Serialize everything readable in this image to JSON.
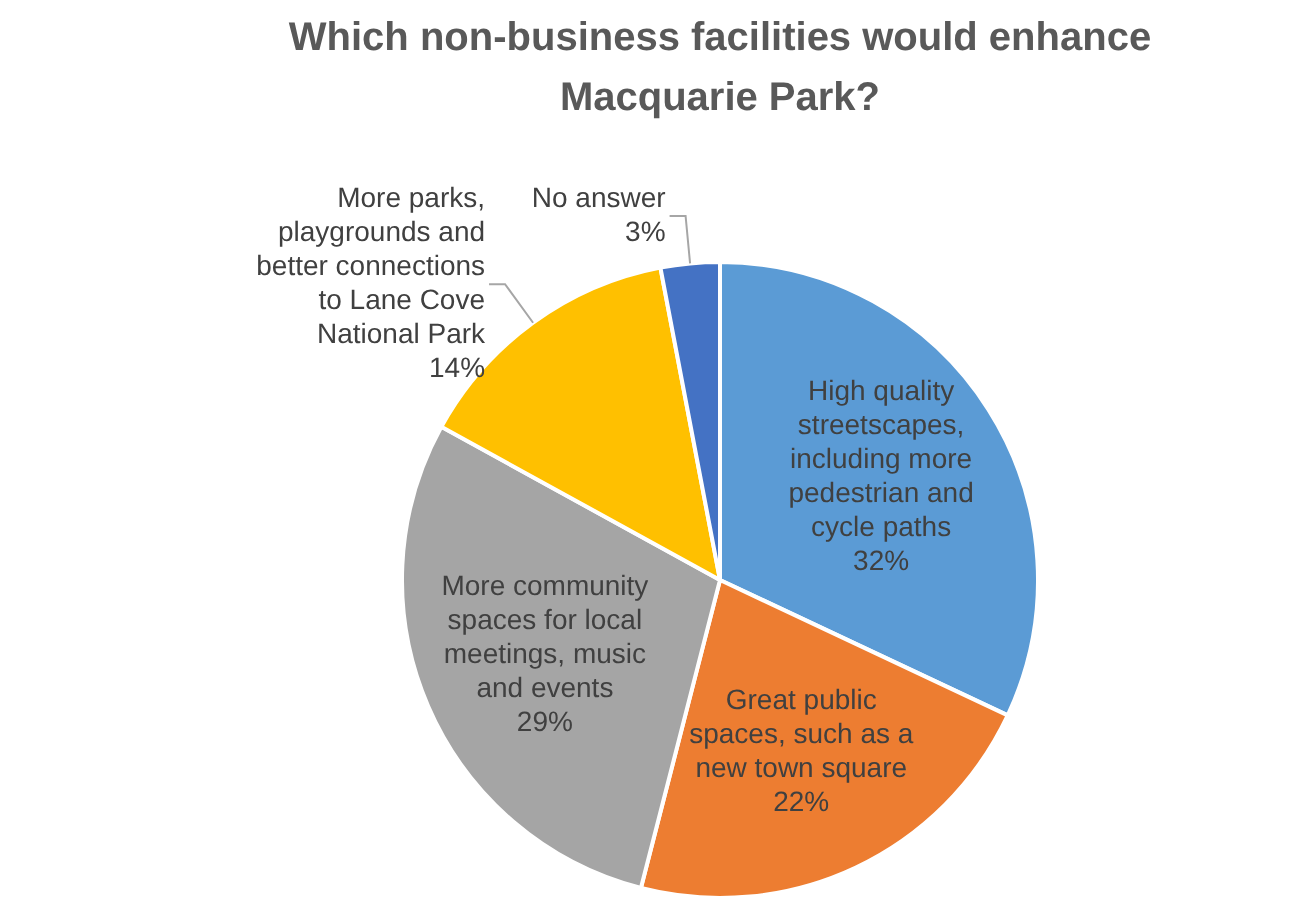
{
  "chart_data": {
    "type": "pie",
    "title": "Which non-business facilities would enhance Macquarie Park?",
    "categories": [
      "High quality streetscapes, including more pedestrian and cycle paths",
      "Great public spaces, such as a new town square",
      "More community spaces for local meetings, music and events",
      "More parks, playgrounds and better connections to Lane Cove National Park",
      "No answer"
    ],
    "values": [
      32,
      22,
      29,
      14,
      3
    ],
    "colors": [
      "#5b9bd5",
      "#ed7d31",
      "#a5a5a5",
      "#ffc000",
      "#4472c4"
    ],
    "value_labels": [
      "32%",
      "22%",
      "29%",
      "14%",
      "3%"
    ],
    "legend": false
  }
}
